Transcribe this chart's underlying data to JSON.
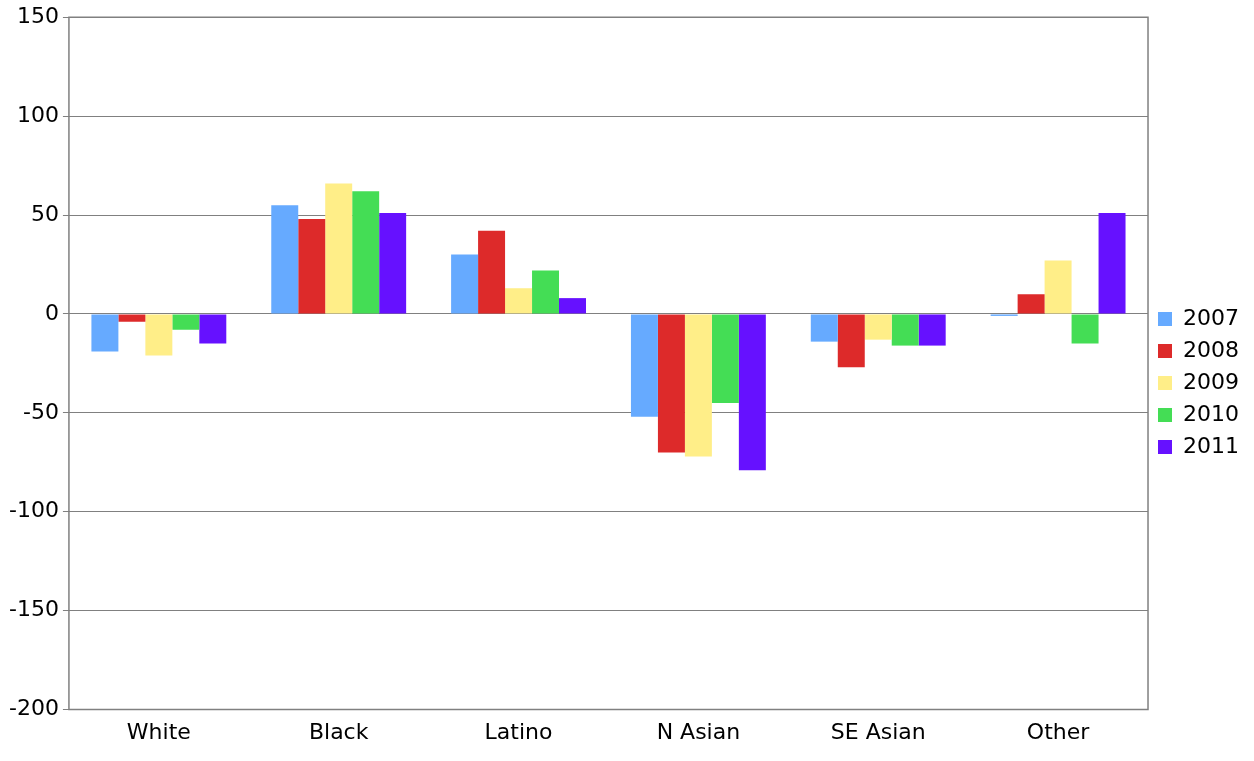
{
  "chart_data": {
    "type": "bar",
    "categories": [
      "White",
      "Black",
      "Latino",
      "N Asian",
      "SE Asian",
      "Other"
    ],
    "series": [
      {
        "name": "2007",
        "color": "#66aaff",
        "values": [
          -19,
          55,
          30,
          -52,
          -14,
          -1
        ]
      },
      {
        "name": "2008",
        "color": "#dd2a2a",
        "values": [
          -4,
          48,
          42,
          -70,
          -27,
          10
        ]
      },
      {
        "name": "2009",
        "color": "#ffee88",
        "values": [
          -21,
          66,
          13,
          -72,
          -13,
          27
        ]
      },
      {
        "name": "2010",
        "color": "#44dd55",
        "values": [
          -8,
          62,
          22,
          -45,
          -16,
          -15
        ]
      },
      {
        "name": "2011",
        "color": "#6611ff",
        "values": [
          -15,
          51,
          8,
          -79,
          -16,
          51
        ]
      }
    ],
    "ylim": [
      -200,
      150
    ],
    "yticks": [
      -200,
      -150,
      -100,
      -50,
      0,
      50,
      100,
      150
    ],
    "grid": "y",
    "legend": "right"
  }
}
